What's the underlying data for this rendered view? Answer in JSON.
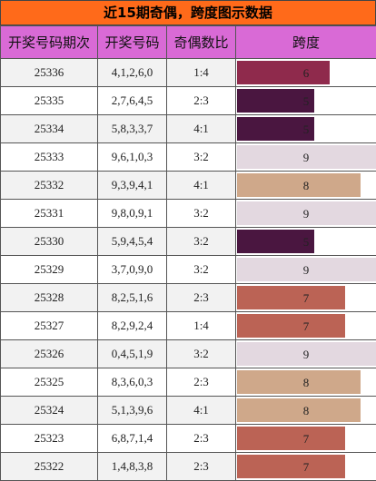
{
  "title": "近15期奇偶，跨度图示数据",
  "headers": [
    "开奖号码期次",
    "开奖号码",
    "奇偶数比",
    "跨度"
  ],
  "span_max": 9,
  "span_colors": {
    "5": "#4a1640",
    "6": "#8f2a4c",
    "7": "#bb6355",
    "8": "#cfa88a",
    "9": "#e3d8e0"
  },
  "rows": [
    {
      "issue": "25336",
      "numbers": "4,1,2,6,0",
      "ratio": "1:4",
      "span": 6
    },
    {
      "issue": "25335",
      "numbers": "2,7,6,4,5",
      "ratio": "2:3",
      "span": 5
    },
    {
      "issue": "25334",
      "numbers": "5,8,3,3,7",
      "ratio": "4:1",
      "span": 5
    },
    {
      "issue": "25333",
      "numbers": "9,6,1,0,3",
      "ratio": "3:2",
      "span": 9
    },
    {
      "issue": "25332",
      "numbers": "9,3,9,4,1",
      "ratio": "4:1",
      "span": 8
    },
    {
      "issue": "25331",
      "numbers": "9,8,0,9,1",
      "ratio": "3:2",
      "span": 9
    },
    {
      "issue": "25330",
      "numbers": "5,9,4,5,4",
      "ratio": "3:2",
      "span": 5
    },
    {
      "issue": "25329",
      "numbers": "3,7,0,9,0",
      "ratio": "3:2",
      "span": 9
    },
    {
      "issue": "25328",
      "numbers": "8,2,5,1,6",
      "ratio": "2:3",
      "span": 7
    },
    {
      "issue": "25327",
      "numbers": "8,2,9,2,4",
      "ratio": "1:4",
      "span": 7
    },
    {
      "issue": "25326",
      "numbers": "0,4,5,1,9",
      "ratio": "3:2",
      "span": 9
    },
    {
      "issue": "25325",
      "numbers": "8,3,6,0,3",
      "ratio": "2:3",
      "span": 8
    },
    {
      "issue": "25324",
      "numbers": "5,1,3,9,6",
      "ratio": "4:1",
      "span": 8
    },
    {
      "issue": "25323",
      "numbers": "6,8,7,1,4",
      "ratio": "2:3",
      "span": 7
    },
    {
      "issue": "25322",
      "numbers": "1,4,8,3,8",
      "ratio": "2:3",
      "span": 7
    }
  ]
}
